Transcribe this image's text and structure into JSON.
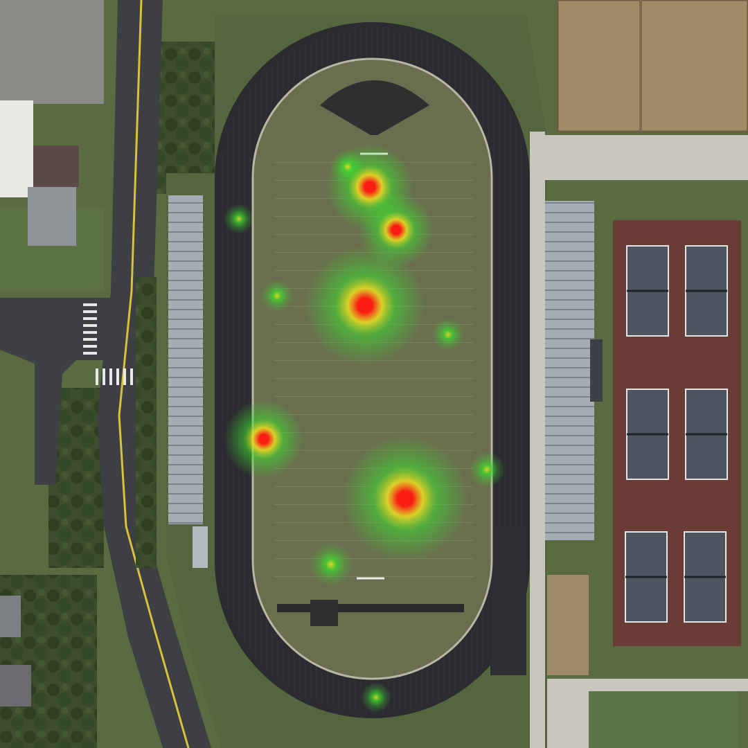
{
  "view": {
    "type": "satellite",
    "overlay": "heatmap"
  },
  "colors": {
    "grass_dark": "#4f6239",
    "grass_light": "#6d7f4e",
    "field": "#6a6d4e",
    "track": "#2c2b30",
    "road": "#3e3f43",
    "road_line_yellow": "#d8c23c",
    "tennis_court": "#6b3c36",
    "tennis_playing": "#4d5560",
    "bleachers": "#9aa0aa",
    "rooftop": "#a08a68",
    "concrete": "#c9c6bd",
    "heat_low": "#3ddc2f",
    "heat_mid": "#f0e020",
    "heat_high": "#ff1a10"
  },
  "heat_points": [
    {
      "id": "h1",
      "intensity": 1.0
    },
    {
      "id": "h2",
      "intensity": 0.9
    },
    {
      "id": "h3",
      "intensity": 1.0
    },
    {
      "id": "h4",
      "intensity": 1.0
    },
    {
      "id": "h5",
      "intensity": 0.9
    },
    {
      "id": "h6",
      "intensity": 0.6
    },
    {
      "id": "h7",
      "intensity": 0.5
    },
    {
      "id": "h8",
      "intensity": 0.4
    },
    {
      "id": "h9",
      "intensity": 0.4
    },
    {
      "id": "h10",
      "intensity": 0.4
    },
    {
      "id": "h11",
      "intensity": 0.4
    },
    {
      "id": "h12",
      "intensity": 0.3
    }
  ]
}
